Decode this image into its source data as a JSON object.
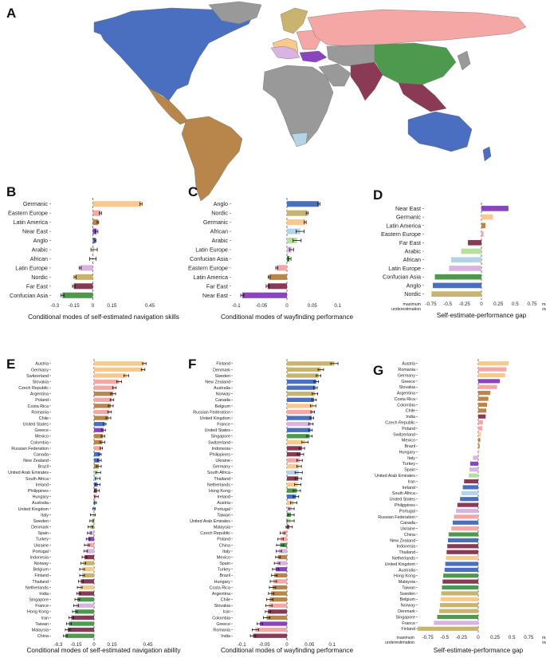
{
  "colors": {
    "Germanic": "#f8c88c",
    "Eastern Europe": "#f4a7a5",
    "Latin America": "#b8864b",
    "Near East": "#8a45be",
    "Anglo": "#4a6fc0",
    "Arabic": "#b8dfa0",
    "African": "#b4d4e6",
    "Latin Europe": "#d9b4e0",
    "Nordic": "#c8b46e",
    "Far East": "#8b3a55",
    "Confucian Asia": "#4d9a4f",
    "Other": "#999999",
    "sea": "#ffffff"
  },
  "panels": {
    "A": "A",
    "B": "B",
    "C": "C",
    "D": "D",
    "E": "E",
    "F": "F",
    "G": "G"
  },
  "chart_data": [
    {
      "id": "B",
      "type": "bar",
      "orientation": "horizontal",
      "xlabel": "Conditional modes of self-estimated navigation skills",
      "xlim": [
        -0.33,
        0.5
      ],
      "ticks": [
        -0.3,
        -0.15,
        0,
        0.15,
        0.45
      ],
      "tick_labels": [
        "-0.3",
        "-0.15",
        "0",
        "0.15",
        "0.45"
      ],
      "error_bars": true,
      "categories": [
        "Germanic",
        "Eastern Europe",
        "Latin America",
        "Near East",
        "Anglo",
        "Arabic",
        "African",
        "Latin Europe",
        "Nordic",
        "Far East",
        "Confucian Asia"
      ],
      "values": [
        0.38,
        0.06,
        0.04,
        0.03,
        0.02,
        0.01,
        0.0,
        -0.1,
        -0.14,
        -0.15,
        -0.24
      ],
      "errors": [
        0.008,
        0.008,
        0.006,
        0.01,
        0.004,
        0.025,
        0.025,
        0.008,
        0.008,
        0.01,
        0.012
      ],
      "groups": [
        "Germanic",
        "Eastern Europe",
        "Latin America",
        "Near East",
        "Anglo",
        "Arabic",
        "African",
        "Latin Europe",
        "Nordic",
        "Far East",
        "Confucian Asia"
      ]
    },
    {
      "id": "C",
      "type": "bar",
      "orientation": "horizontal",
      "xlabel": "Conditional modes of wayfinding performance",
      "xlim": [
        -0.11,
        0.11
      ],
      "ticks": [
        -0.1,
        -0.05,
        0,
        0.05,
        0.1
      ],
      "tick_labels": [
        "-0.1",
        "-0.05",
        "0",
        "0.05",
        "0.1"
      ],
      "error_bars": true,
      "categories": [
        "Anglo",
        "Nordic",
        "Germanic",
        "African",
        "Arabic",
        "Latin Europe",
        "Confucian Asia",
        "Eastern Europe",
        "Latin America",
        "Far East",
        "Near East"
      ],
      "values": [
        0.063,
        0.04,
        0.036,
        0.026,
        0.02,
        0.009,
        0.005,
        -0.02,
        -0.035,
        -0.038,
        -0.088
      ],
      "errors": [
        0.002,
        0.002,
        0.002,
        0.008,
        0.008,
        0.004,
        0.003,
        0.002,
        0.002,
        0.003,
        0.003
      ],
      "groups": [
        "Anglo",
        "Nordic",
        "Germanic",
        "African",
        "Arabic",
        "Latin Europe",
        "Confucian Asia",
        "Eastern Europe",
        "Latin America",
        "Far East",
        "Near East"
      ]
    },
    {
      "id": "D",
      "type": "bar",
      "orientation": "horizontal",
      "xlabel": "Self-estimate-performance gap",
      "xlim": [
        -0.85,
        0.85
      ],
      "ticks": [
        -0.75,
        -0.5,
        -0.25,
        0,
        0.25,
        0.5,
        0.75
      ],
      "tick_labels": [
        "-0.75",
        "-0.5",
        "-0.25",
        "0",
        "0.25",
        "0.5",
        "0.75"
      ],
      "extreme_labels": {
        "left": [
          "maximum",
          "underestimation"
        ],
        "right": [
          "maximum",
          "overestimation"
        ]
      },
      "error_bars": false,
      "categories": [
        "Near East",
        "Germanic",
        "Latin America",
        "Eastern Europe",
        "Far East",
        "Arabic",
        "African",
        "Latin Europe",
        "Confucian Asia",
        "Anglo",
        "Nordic"
      ],
      "values": [
        0.4,
        0.17,
        0.06,
        0.03,
        -0.2,
        -0.3,
        -0.45,
        -0.48,
        -0.69,
        -0.72,
        -0.74
      ],
      "groups": [
        "Near East",
        "Germanic",
        "Latin America",
        "Eastern Europe",
        "Far East",
        "Arabic",
        "African",
        "Latin Europe",
        "Confucian Asia",
        "Anglo",
        "Nordic"
      ]
    },
    {
      "id": "E",
      "type": "bar",
      "orientation": "horizontal",
      "xlabel": "Conditional modes of self-estimated navigation ability",
      "xlim": [
        -0.36,
        0.52
      ],
      "ticks": [
        -0.3,
        -0.15,
        0,
        0.15,
        0.45
      ],
      "tick_labels": [
        "-0.3",
        "-0.15",
        "0",
        "0.15",
        "0.45"
      ],
      "error_bars": true,
      "categories": [
        "Austria",
        "Germany",
        "Switzerland",
        "Slovakia",
        "Czech Republic",
        "Argentina",
        "Poland",
        "Costa Rica",
        "Romania",
        "Chile",
        "United States",
        "Greece",
        "Mexico",
        "Colombia",
        "Russian Federation",
        "Canada",
        "New Zealand",
        "Brazil",
        "United Arab Emirates",
        "South Africa",
        "Ireland",
        "Philippines",
        "Hungary",
        "Australia",
        "United Kingdom",
        "Italy",
        "Sweden",
        "Denmark",
        "Spain",
        "Turkey",
        "Ukraine",
        "Portugal",
        "Indonesia",
        "Norway",
        "Belgium",
        "Finland",
        "Thailand",
        "Netherlands",
        "India",
        "Singapore",
        "France",
        "Hong Kong",
        "Iran",
        "Taiwan",
        "Malaysia",
        "China"
      ],
      "values": [
        0.42,
        0.41,
        0.27,
        0.21,
        0.17,
        0.16,
        0.15,
        0.14,
        0.13,
        0.12,
        0.09,
        0.08,
        0.075,
        0.07,
        0.06,
        0.05,
        0.045,
        0.04,
        0.035,
        0.03,
        0.03,
        0.025,
        0.02,
        0.01,
        0.0,
        -0.01,
        -0.02,
        -0.03,
        -0.04,
        -0.05,
        -0.06,
        -0.07,
        -0.08,
        -0.09,
        -0.1,
        -0.1,
        -0.11,
        -0.12,
        -0.13,
        -0.14,
        -0.15,
        -0.16,
        -0.19,
        -0.21,
        -0.22,
        -0.24
      ],
      "errors": [
        0.015,
        0.015,
        0.02,
        0.02,
        0.015,
        0.02,
        0.015,
        0.02,
        0.015,
        0.02,
        0.01,
        0.015,
        0.015,
        0.02,
        0.01,
        0.01,
        0.015,
        0.02,
        0.02,
        0.02,
        0.02,
        0.02,
        0.015,
        0.01,
        0.01,
        0.02,
        0.015,
        0.02,
        0.015,
        0.015,
        0.02,
        0.015,
        0.02,
        0.02,
        0.02,
        0.02,
        0.02,
        0.02,
        0.015,
        0.02,
        0.02,
        0.02,
        0.02,
        0.02,
        0.02,
        0.015
      ],
      "groups": [
        "Germanic",
        "Germanic",
        "Germanic",
        "Eastern Europe",
        "Eastern Europe",
        "Latin America",
        "Eastern Europe",
        "Latin America",
        "Eastern Europe",
        "Latin America",
        "Anglo",
        "Near East",
        "Latin America",
        "Latin America",
        "Eastern Europe",
        "Anglo",
        "Anglo",
        "Latin America",
        "Arabic",
        "African",
        "Anglo",
        "Far East",
        "Eastern Europe",
        "Anglo",
        "Anglo",
        "Latin Europe",
        "Nordic",
        "Nordic",
        "Latin Europe",
        "Near East",
        "Eastern Europe",
        "Latin Europe",
        "Far East",
        "Nordic",
        "Germanic",
        "Nordic",
        "Far East",
        "Germanic",
        "Far East",
        "Confucian Asia",
        "Latin Europe",
        "Confucian Asia",
        "Far East",
        "Confucian Asia",
        "Far East",
        "Confucian Asia"
      ]
    },
    {
      "id": "F",
      "type": "bar",
      "orientation": "horizontal",
      "xlabel": "Conditional modes of wayfinding performance",
      "xlim": [
        -0.12,
        0.12
      ],
      "ticks": [
        -0.1,
        -0.05,
        0,
        0.05,
        0.1
      ],
      "tick_labels": [
        "-0.1",
        "-0.05",
        "0",
        "0.05",
        "0.1"
      ],
      "error_bars": true,
      "categories": [
        "Finland",
        "Denmark",
        "Sweden",
        "New Zealand",
        "Australia",
        "Norway",
        "Canada",
        "Belgium",
        "Russian Federation",
        "United Kingdom",
        "France",
        "United States",
        "Singapore",
        "Switzerland",
        "Indonesia",
        "Philippines",
        "Ukraine",
        "Germany",
        "South Africa",
        "Thailand",
        "Netherlands",
        "Hong Kong",
        "Ireland",
        "Austria",
        "Portugal",
        "Taiwan",
        "United Arab Emirates",
        "Malaysia",
        "Czech Republic",
        "Poland",
        "China",
        "Italy",
        "Mexico",
        "Spain",
        "Turkey",
        "Brazil",
        "Hungary",
        "Costa Rica",
        "Argentina",
        "Chile",
        "Slovakia",
        "Iran",
        "Colombia",
        "Greece",
        "Romania",
        "India"
      ],
      "values": [
        0.105,
        0.075,
        0.07,
        0.065,
        0.063,
        0.062,
        0.06,
        0.058,
        0.057,
        0.055,
        0.053,
        0.052,
        0.05,
        0.04,
        0.033,
        0.03,
        0.028,
        0.027,
        0.026,
        0.025,
        0.024,
        0.022,
        0.02,
        0.015,
        0.01,
        0.009,
        0.008,
        0.005,
        -0.01,
        -0.014,
        -0.015,
        -0.018,
        -0.02,
        -0.022,
        -0.025,
        -0.028,
        -0.03,
        -0.032,
        -0.035,
        -0.038,
        -0.04,
        -0.042,
        -0.045,
        -0.06,
        -0.07,
        -0.075
      ],
      "errors": [
        0.008,
        0.006,
        0.005,
        0.005,
        0.004,
        0.006,
        0.005,
        0.006,
        0.004,
        0.004,
        0.005,
        0.004,
        0.006,
        0.007,
        0.006,
        0.007,
        0.006,
        0.005,
        0.008,
        0.007,
        0.007,
        0.008,
        0.006,
        0.007,
        0.006,
        0.007,
        0.008,
        0.007,
        0.005,
        0.006,
        0.008,
        0.006,
        0.005,
        0.006,
        0.007,
        0.006,
        0.007,
        0.007,
        0.006,
        0.007,
        0.007,
        0.006,
        0.007,
        0.006,
        0.007,
        0.006
      ],
      "groups": [
        "Nordic",
        "Nordic",
        "Nordic",
        "Anglo",
        "Anglo",
        "Nordic",
        "Anglo",
        "Germanic",
        "Eastern Europe",
        "Anglo",
        "Latin Europe",
        "Anglo",
        "Confucian Asia",
        "Germanic",
        "Far East",
        "Far East",
        "Eastern Europe",
        "Germanic",
        "African",
        "Far East",
        "Germanic",
        "Confucian Asia",
        "Anglo",
        "Germanic",
        "Latin Europe",
        "Confucian Asia",
        "Arabic",
        "Far East",
        "Eastern Europe",
        "Eastern Europe",
        "Confucian Asia",
        "Latin Europe",
        "Latin America",
        "Latin Europe",
        "Near East",
        "Latin America",
        "Eastern Europe",
        "Latin America",
        "Latin America",
        "Latin America",
        "Eastern Europe",
        "Far East",
        "Latin America",
        "Near East",
        "Eastern Europe",
        "Far East"
      ]
    },
    {
      "id": "G",
      "type": "bar",
      "orientation": "horizontal",
      "xlabel": "Self-estimate-performance gap",
      "xlim": [
        -0.9,
        0.9
      ],
      "ticks": [
        -0.75,
        -0.5,
        -0.25,
        0,
        0.25,
        0.5,
        0.75
      ],
      "tick_labels": [
        "-0.75",
        "-0.5",
        "-0.25",
        "0",
        "0.25",
        "0.5",
        "0.75"
      ],
      "extreme_labels": {
        "left": [
          "maximum",
          "underestimation"
        ],
        "right": [
          "maximum",
          "overestimation"
        ]
      },
      "error_bars": false,
      "categories": [
        "Austria",
        "Romania",
        "Germany",
        "Greece",
        "Slovakia",
        "Argentina",
        "Costa Rica",
        "Colombia",
        "Chile",
        "India",
        "Czech Republic",
        "Poland",
        "Switzerland",
        "Mexico",
        "Brazil",
        "Hungary",
        "Italy",
        "Turkey",
        "Spain",
        "United Arab Emirates",
        "Iran",
        "Ireland",
        "South Africa",
        "United States",
        "Philippines",
        "Portugal",
        "Russian Federation",
        "Canada",
        "Ukraine",
        "China",
        "New Zealand",
        "Indonesia",
        "Thailand",
        "Netherlands",
        "United Kingdom",
        "Australia",
        "Hong Kong",
        "Malaysia",
        "Taiwan",
        "Sweden",
        "Belgium",
        "Norway",
        "Denmark",
        "Singapore",
        "France",
        "Finland"
      ],
      "values": [
        0.45,
        0.42,
        0.4,
        0.32,
        0.28,
        0.18,
        0.15,
        0.13,
        0.12,
        0.11,
        0.07,
        0.06,
        0.04,
        0.03,
        0.02,
        0.01,
        -0.08,
        -0.12,
        -0.13,
        -0.14,
        -0.21,
        -0.23,
        -0.25,
        -0.27,
        -0.31,
        -0.33,
        -0.36,
        -0.38,
        -0.4,
        -0.44,
        -0.45,
        -0.46,
        -0.47,
        -0.48,
        -0.49,
        -0.5,
        -0.52,
        -0.53,
        -0.54,
        -0.55,
        -0.56,
        -0.57,
        -0.58,
        -0.61,
        -0.66,
        -0.9
      ],
      "groups": [
        "Germanic",
        "Eastern Europe",
        "Germanic",
        "Near East",
        "Eastern Europe",
        "Latin America",
        "Latin America",
        "Latin America",
        "Latin America",
        "Far East",
        "Eastern Europe",
        "Eastern Europe",
        "Germanic",
        "Latin America",
        "Latin America",
        "Eastern Europe",
        "Latin Europe",
        "Near East",
        "Latin Europe",
        "Arabic",
        "Far East",
        "Anglo",
        "African",
        "Anglo",
        "Far East",
        "Latin Europe",
        "Eastern Europe",
        "Anglo",
        "Eastern Europe",
        "Confucian Asia",
        "Anglo",
        "Far East",
        "Far East",
        "Germanic",
        "Anglo",
        "Anglo",
        "Confucian Asia",
        "Far East",
        "Confucian Asia",
        "Nordic",
        "Germanic",
        "Nordic",
        "Nordic",
        "Confucian Asia",
        "Latin Europe",
        "Nordic"
      ]
    }
  ]
}
